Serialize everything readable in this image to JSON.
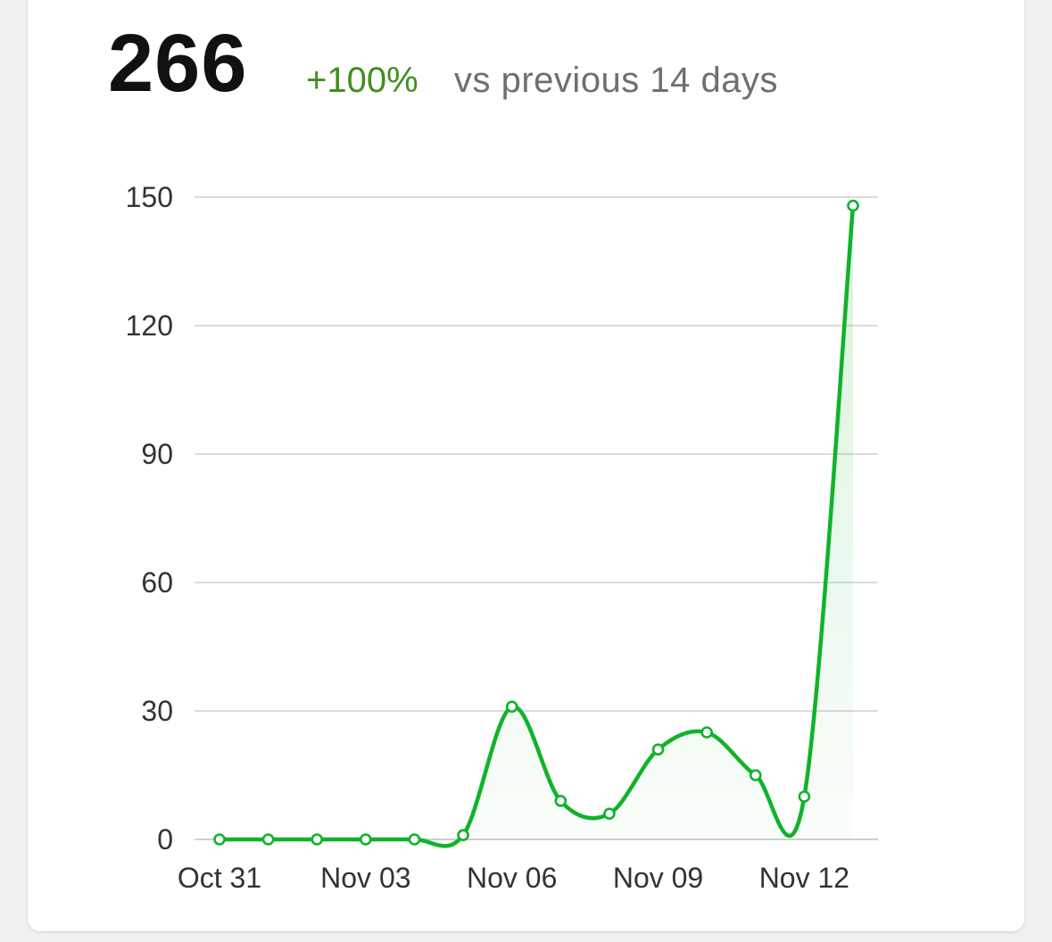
{
  "summary": {
    "total": "266",
    "change": "+100%",
    "comparison": "vs previous 14 days"
  },
  "colors": {
    "line": "#0fb32a",
    "change_text": "#3f8f1d",
    "grid": "#cfcfcf"
  },
  "chart_data": {
    "type": "line",
    "x": [
      "Oct 31",
      "Nov 01",
      "Nov 02",
      "Nov 03",
      "Nov 04",
      "Nov 05",
      "Nov 06",
      "Nov 07",
      "Nov 08",
      "Nov 09",
      "Nov 10",
      "Nov 11",
      "Nov 12",
      "Nov 13"
    ],
    "x_tick_labels": [
      "Oct 31",
      "Nov 03",
      "Nov 06",
      "Nov 09",
      "Nov 12"
    ],
    "series": [
      {
        "values": [
          0,
          0,
          0,
          0,
          0,
          1,
          31,
          9,
          6,
          21,
          25,
          15,
          10,
          148
        ]
      }
    ],
    "y_ticks": [
      "0",
      "30",
      "60",
      "90",
      "120",
      "150"
    ],
    "ylim": [
      0,
      150
    ],
    "grid": true,
    "smooth": true,
    "area_fill": true,
    "markers": true,
    "title": "",
    "xlabel": "",
    "ylabel": ""
  }
}
